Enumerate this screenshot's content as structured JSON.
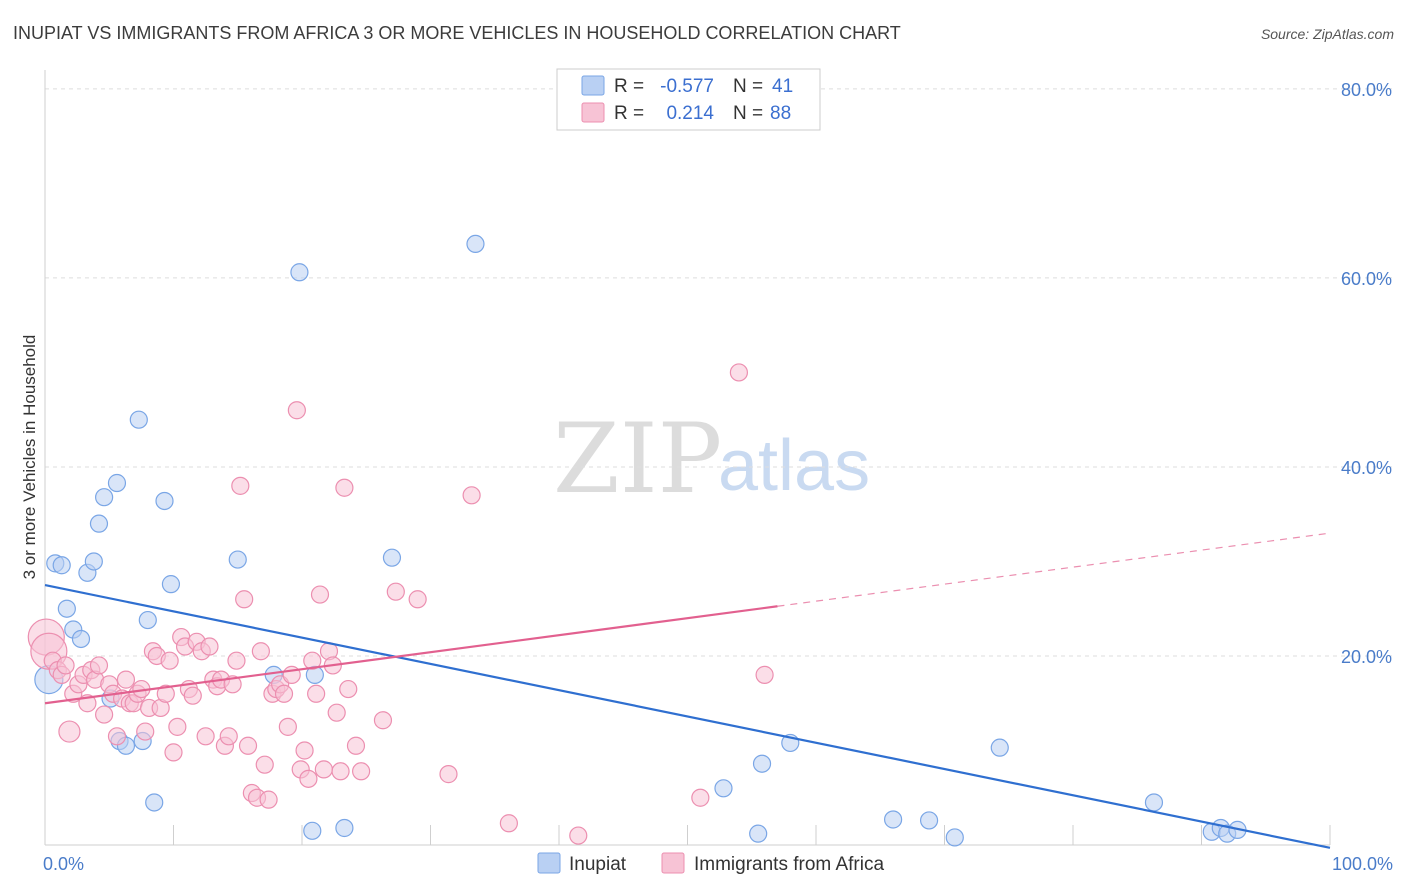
{
  "chart_data": {
    "type": "scatter",
    "title": "INUPIAT VS IMMIGRANTS FROM AFRICA 3 OR MORE VEHICLES IN HOUSEHOLD CORRELATION CHART",
    "source": "Source: ZipAtlas.com",
    "ylabel": "3 or more Vehicles in Household",
    "xlabel": "",
    "xlim": [
      0,
      100
    ],
    "ylim": [
      0,
      82
    ],
    "x_ticks": [
      "0.0%",
      "100.0%"
    ],
    "y_ticks": [
      {
        "value": 20,
        "label": "20.0%"
      },
      {
        "value": 40,
        "label": "40.0%"
      },
      {
        "value": 60,
        "label": "60.0%"
      },
      {
        "value": 80,
        "label": "80.0%"
      }
    ],
    "grid": true,
    "watermark": {
      "zip": "ZIP",
      "atlas": "atlas"
    },
    "legend": {
      "position": "top-center",
      "entries": [
        {
          "r_label": "R =",
          "r_value": "-0.577",
          "n_label": "N =",
          "n_value": "41"
        },
        {
          "r_label": "R =",
          "r_value": "0.214",
          "n_label": "N =",
          "n_value": "88"
        }
      ]
    },
    "series": [
      {
        "name": "Inupiat",
        "color": "#7aa6e6",
        "fill": "#b9d0f3",
        "trend": {
          "x0": 0,
          "y0": 27.5,
          "x1": 100,
          "y1": -0.3,
          "dashed_from": null,
          "color": "#2f6fd0"
        },
        "points": [
          [
            0.3,
            17.5
          ],
          [
            0.8,
            29.8
          ],
          [
            1.3,
            29.6
          ],
          [
            1.7,
            25.0
          ],
          [
            2.2,
            22.8
          ],
          [
            2.8,
            21.8
          ],
          [
            3.3,
            28.8
          ],
          [
            3.8,
            30.0
          ],
          [
            4.2,
            34.0
          ],
          [
            4.6,
            36.8
          ],
          [
            5.1,
            15.5
          ],
          [
            5.6,
            38.3
          ],
          [
            5.8,
            11.0
          ],
          [
            6.3,
            10.5
          ],
          [
            7.3,
            45.0
          ],
          [
            7.6,
            11.0
          ],
          [
            8.0,
            23.8
          ],
          [
            8.5,
            4.5
          ],
          [
            9.3,
            36.4
          ],
          [
            9.8,
            27.6
          ],
          [
            15.0,
            30.2
          ],
          [
            17.8,
            18.0
          ],
          [
            19.8,
            60.6
          ],
          [
            20.8,
            1.5
          ],
          [
            21.0,
            18.0
          ],
          [
            23.3,
            1.8
          ],
          [
            27.0,
            30.4
          ],
          [
            33.5,
            63.6
          ],
          [
            52.8,
            6.0
          ],
          [
            55.5,
            1.2
          ],
          [
            55.8,
            8.6
          ],
          [
            58.0,
            10.8
          ],
          [
            66.0,
            2.7
          ],
          [
            68.8,
            2.6
          ],
          [
            70.8,
            0.8
          ],
          [
            74.3,
            10.3
          ],
          [
            86.3,
            4.5
          ],
          [
            90.8,
            1.4
          ],
          [
            91.5,
            1.8
          ],
          [
            92.0,
            1.2
          ],
          [
            92.8,
            1.6
          ]
        ]
      },
      {
        "name": "Immigrants from Africa",
        "color": "#ec8fb0",
        "fill": "#f7c3d5",
        "trend": {
          "x0": 0,
          "y0": 15.0,
          "x1": 100,
          "y1": 33.0,
          "dashed_from": 57,
          "color": "#e2608f"
        },
        "points": [
          [
            0.1,
            22.0
          ],
          [
            0.3,
            20.5
          ],
          [
            0.6,
            19.5
          ],
          [
            1.0,
            18.5
          ],
          [
            1.3,
            18.0
          ],
          [
            1.6,
            19.0
          ],
          [
            1.9,
            12.0
          ],
          [
            2.2,
            16.0
          ],
          [
            2.6,
            17.0
          ],
          [
            3.0,
            18.0
          ],
          [
            3.3,
            15.0
          ],
          [
            3.6,
            18.5
          ],
          [
            3.9,
            17.5
          ],
          [
            4.2,
            19.0
          ],
          [
            4.6,
            13.8
          ],
          [
            5.0,
            17.0
          ],
          [
            5.3,
            16.0
          ],
          [
            5.6,
            11.5
          ],
          [
            6.0,
            15.5
          ],
          [
            6.3,
            17.5
          ],
          [
            6.6,
            15.0
          ],
          [
            6.9,
            15.0
          ],
          [
            7.2,
            16.0
          ],
          [
            7.5,
            16.5
          ],
          [
            7.8,
            12.0
          ],
          [
            8.1,
            14.5
          ],
          [
            8.4,
            20.5
          ],
          [
            8.7,
            20.0
          ],
          [
            9.0,
            14.5
          ],
          [
            9.4,
            16.0
          ],
          [
            9.7,
            19.5
          ],
          [
            10.0,
            9.8
          ],
          [
            10.3,
            12.5
          ],
          [
            10.6,
            22.0
          ],
          [
            10.9,
            21.0
          ],
          [
            11.2,
            16.5
          ],
          [
            11.5,
            15.8
          ],
          [
            11.8,
            21.5
          ],
          [
            12.2,
            20.5
          ],
          [
            12.5,
            11.5
          ],
          [
            12.8,
            21.0
          ],
          [
            13.1,
            17.5
          ],
          [
            13.4,
            16.8
          ],
          [
            13.7,
            17.5
          ],
          [
            14.0,
            10.5
          ],
          [
            14.3,
            11.5
          ],
          [
            14.6,
            17.0
          ],
          [
            14.9,
            19.5
          ],
          [
            15.2,
            38.0
          ],
          [
            15.5,
            26.0
          ],
          [
            15.8,
            10.5
          ],
          [
            16.1,
            5.5
          ],
          [
            16.5,
            5.0
          ],
          [
            16.8,
            20.5
          ],
          [
            17.1,
            8.5
          ],
          [
            17.4,
            4.8
          ],
          [
            17.7,
            16.0
          ],
          [
            18.0,
            16.5
          ],
          [
            18.3,
            17.0
          ],
          [
            18.6,
            16.0
          ],
          [
            18.9,
            12.5
          ],
          [
            19.2,
            18.0
          ],
          [
            19.6,
            46.0
          ],
          [
            19.9,
            8.0
          ],
          [
            20.2,
            10.0
          ],
          [
            20.5,
            7.0
          ],
          [
            20.8,
            19.5
          ],
          [
            21.1,
            16.0
          ],
          [
            21.4,
            26.5
          ],
          [
            21.7,
            8.0
          ],
          [
            22.1,
            20.5
          ],
          [
            22.4,
            19.0
          ],
          [
            22.7,
            14.0
          ],
          [
            23.0,
            7.8
          ],
          [
            23.3,
            37.8
          ],
          [
            23.6,
            16.5
          ],
          [
            24.2,
            10.5
          ],
          [
            24.6,
            7.8
          ],
          [
            26.3,
            13.2
          ],
          [
            27.3,
            26.8
          ],
          [
            29.0,
            26.0
          ],
          [
            31.4,
            7.5
          ],
          [
            33.2,
            37.0
          ],
          [
            36.1,
            2.3
          ],
          [
            41.5,
            1.0
          ],
          [
            51.0,
            5.0
          ],
          [
            54.0,
            50.0
          ],
          [
            56.0,
            18.0
          ]
        ]
      }
    ]
  }
}
